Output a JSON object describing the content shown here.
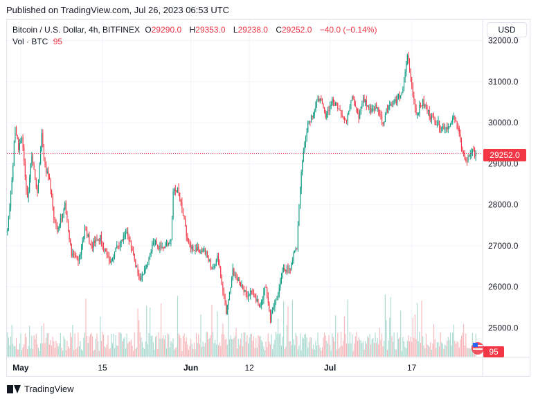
{
  "published": "Published on TradingView.com, Jul 26, 2023 06:53 UTC",
  "legend": {
    "symbol": "Bitcoin / U.S. Dollar, 4h, BITFINEX",
    "o_label": "O",
    "o_value": "29290.0",
    "h_label": "H",
    "h_value": "29353.0",
    "l_label": "L",
    "l_value": "29238.0",
    "c_label": "C",
    "c_value": "29252.0",
    "change": "−40.0 (−0.14%)",
    "vol_label": "Vol · BTC",
    "vol_value": "95"
  },
  "currency": "USD",
  "footer": {
    "brand": "TradingView"
  },
  "colors": {
    "up": "#089981",
    "down": "#f23645",
    "vol_up": "#a7d9cf",
    "vol_down": "#f5b5b9"
  },
  "chart_data": {
    "type": "candlestick",
    "ylim": [
      24300,
      32500
    ],
    "y_ticks": [
      "32000.0",
      "31000.0",
      "30000.0",
      "29000.0",
      "28000.0",
      "27000.0",
      "26000.0",
      "25000.0"
    ],
    "y_tick_values": [
      32000,
      31000,
      30000,
      29000,
      28000,
      27000,
      26000,
      25000
    ],
    "x_ticks": [
      "May",
      "15",
      "Jun",
      "12",
      "Jul",
      "17"
    ],
    "x_tick_bar_index": [
      12,
      86,
      166,
      219,
      292,
      366
    ],
    "last_price_label": "29252.0",
    "last_volume_label": "95",
    "anchors": [
      [
        0,
        27400
      ],
      [
        4,
        28600
      ],
      [
        7,
        29900
      ],
      [
        10,
        29400
      ],
      [
        13,
        29700
      ],
      [
        18,
        28100
      ],
      [
        22,
        29200
      ],
      [
        27,
        28300
      ],
      [
        31,
        29700
      ],
      [
        34,
        28900
      ],
      [
        38,
        28600
      ],
      [
        42,
        27700
      ],
      [
        46,
        27400
      ],
      [
        52,
        28000
      ],
      [
        58,
        26800
      ],
      [
        64,
        26600
      ],
      [
        70,
        27400
      ],
      [
        76,
        27000
      ],
      [
        84,
        27200
      ],
      [
        92,
        26600
      ],
      [
        100,
        27000
      ],
      [
        108,
        27400
      ],
      [
        114,
        26800
      ],
      [
        120,
        26100
      ],
      [
        126,
        26600
      ],
      [
        132,
        27100
      ],
      [
        140,
        26900
      ],
      [
        148,
        27100
      ],
      [
        150,
        28300
      ],
      [
        154,
        28400
      ],
      [
        158,
        27900
      ],
      [
        164,
        27000
      ],
      [
        172,
        26900
      ],
      [
        178,
        26900
      ],
      [
        186,
        26400
      ],
      [
        190,
        26800
      ],
      [
        196,
        25800
      ],
      [
        198,
        25400
      ],
      [
        204,
        26400
      ],
      [
        208,
        26200
      ],
      [
        212,
        26000
      ],
      [
        216,
        25800
      ],
      [
        222,
        25900
      ],
      [
        228,
        25500
      ],
      [
        234,
        26000
      ],
      [
        238,
        25200
      ],
      [
        244,
        25800
      ],
      [
        250,
        26400
      ],
      [
        256,
        26500
      ],
      [
        262,
        27000
      ],
      [
        264,
        28000
      ],
      [
        266,
        28800
      ],
      [
        268,
        29300
      ],
      [
        272,
        30000
      ],
      [
        278,
        30300
      ],
      [
        282,
        30600
      ],
      [
        288,
        30200
      ],
      [
        294,
        30500
      ],
      [
        300,
        30400
      ],
      [
        306,
        30000
      ],
      [
        312,
        30700
      ],
      [
        318,
        30100
      ],
      [
        322,
        30600
      ],
      [
        328,
        30300
      ],
      [
        334,
        30400
      ],
      [
        340,
        30000
      ],
      [
        344,
        30400
      ],
      [
        350,
        30500
      ],
      [
        354,
        30600
      ],
      [
        358,
        30800
      ],
      [
        362,
        31700
      ],
      [
        366,
        30900
      ],
      [
        370,
        30200
      ],
      [
        376,
        30500
      ],
      [
        382,
        30200
      ],
      [
        388,
        30000
      ],
      [
        394,
        29900
      ],
      [
        400,
        29900
      ],
      [
        404,
        30100
      ],
      [
        408,
        29900
      ],
      [
        412,
        29200
      ],
      [
        416,
        29100
      ],
      [
        420,
        29300
      ],
      [
        424,
        29250
      ]
    ]
  }
}
